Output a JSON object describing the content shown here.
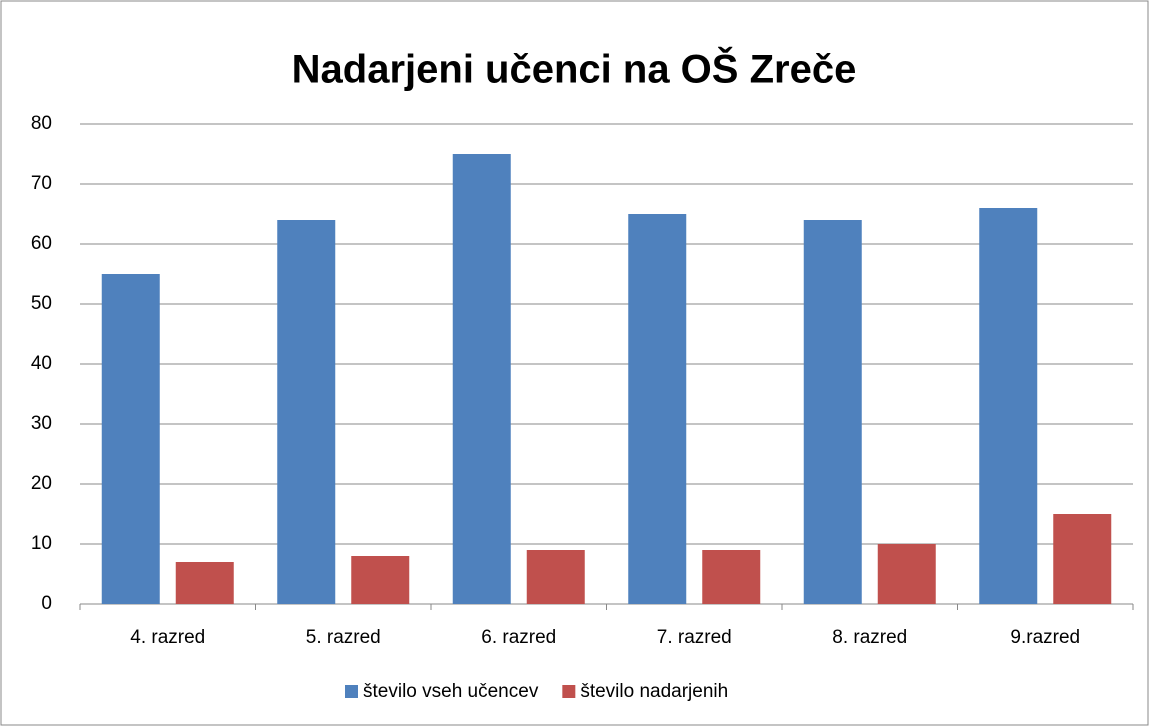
{
  "chart_data": {
    "type": "bar",
    "title": "Nadarjeni učenci na OŠ Zreče",
    "categories": [
      "4. razred",
      "5. razred",
      "6. razred",
      "7. razred",
      "8. razred",
      "9.razred"
    ],
    "series": [
      {
        "name": "število vseh učencev",
        "color": "#4f81bd",
        "values": [
          55,
          64,
          75,
          65,
          64,
          66
        ]
      },
      {
        "name": "število nadarjenih",
        "color": "#c0504d",
        "values": [
          7,
          8,
          9,
          9,
          10,
          15
        ]
      }
    ],
    "ylim": [
      0,
      80
    ],
    "yticks": [
      0,
      10,
      20,
      30,
      40,
      50,
      60,
      70,
      80
    ],
    "grid": true,
    "legend": "bottom"
  }
}
